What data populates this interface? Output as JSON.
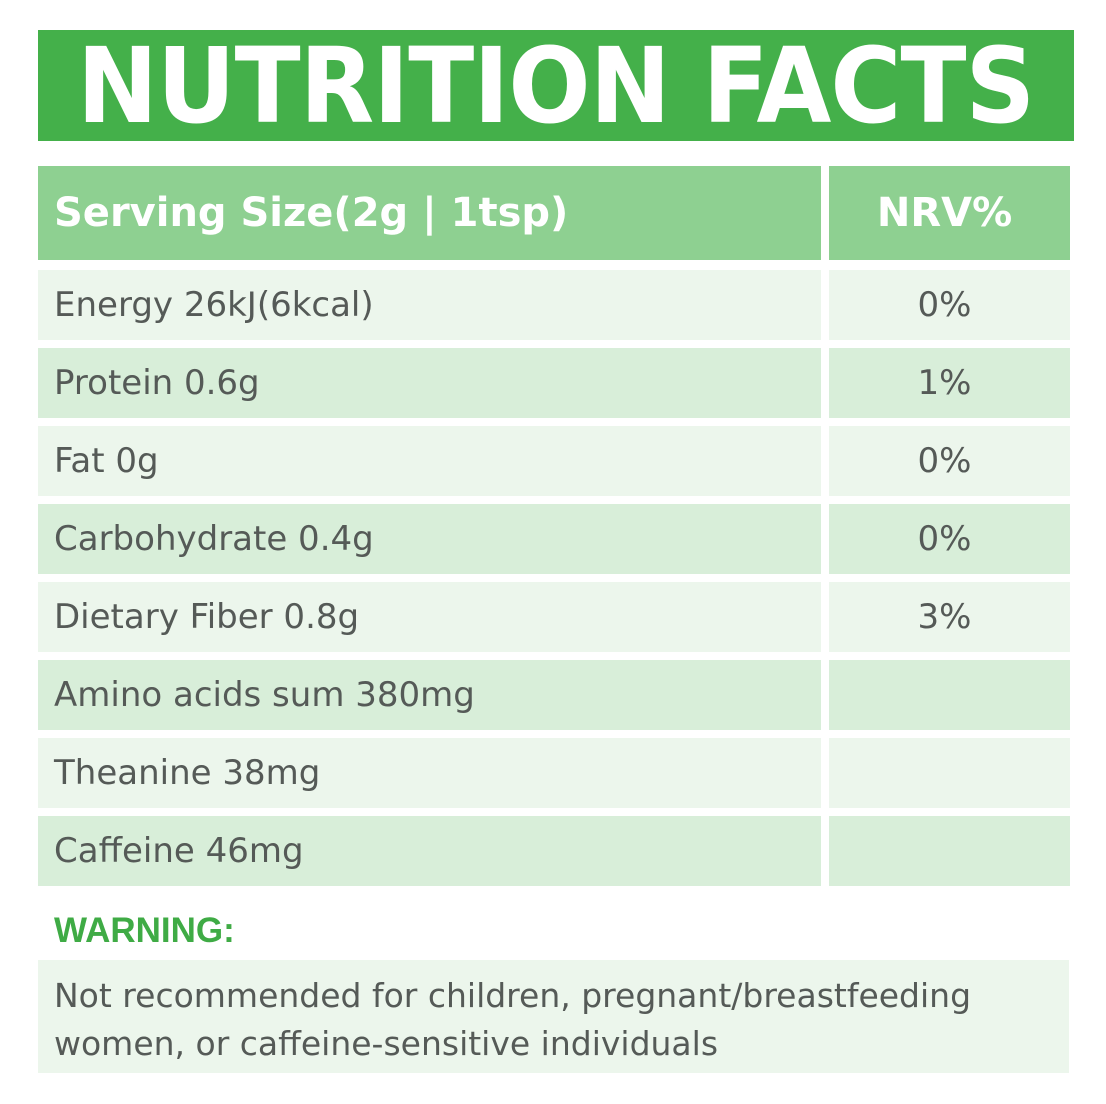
{
  "title": "NUTRITION FACTS",
  "header": {
    "serving_size": "Serving Size(2g | 1tsp)",
    "nrv": "NRV%"
  },
  "rows": [
    {
      "nutrient": "Energy 26kJ(6kcal)",
      "nrv": "0%"
    },
    {
      "nutrient": "Protein 0.6g",
      "nrv": "1%"
    },
    {
      "nutrient": "Fat 0g",
      "nrv": "0%"
    },
    {
      "nutrient": "Carbohydrate 0.4g",
      "nrv": "0%"
    },
    {
      "nutrient": "Dietary Fiber 0.8g",
      "nrv": "3%"
    },
    {
      "nutrient": "Amino acids sum 380mg",
      "nrv": ""
    },
    {
      "nutrient": "Theanine 38mg",
      "nrv": ""
    },
    {
      "nutrient": "Caffeine 46mg",
      "nrv": ""
    }
  ],
  "warning": {
    "label": "WARNING:",
    "text": "Not recommended for children, pregnant/breastfeeding women, or caffeine-sensitive individuals"
  },
  "colors": {
    "banner_green": "#44b04a",
    "header_green": "#8ed091",
    "row_light": "#ecf6ec",
    "row_dark": "#d8eed9",
    "warning_green": "#3fab45",
    "body_text": "#555a57"
  }
}
